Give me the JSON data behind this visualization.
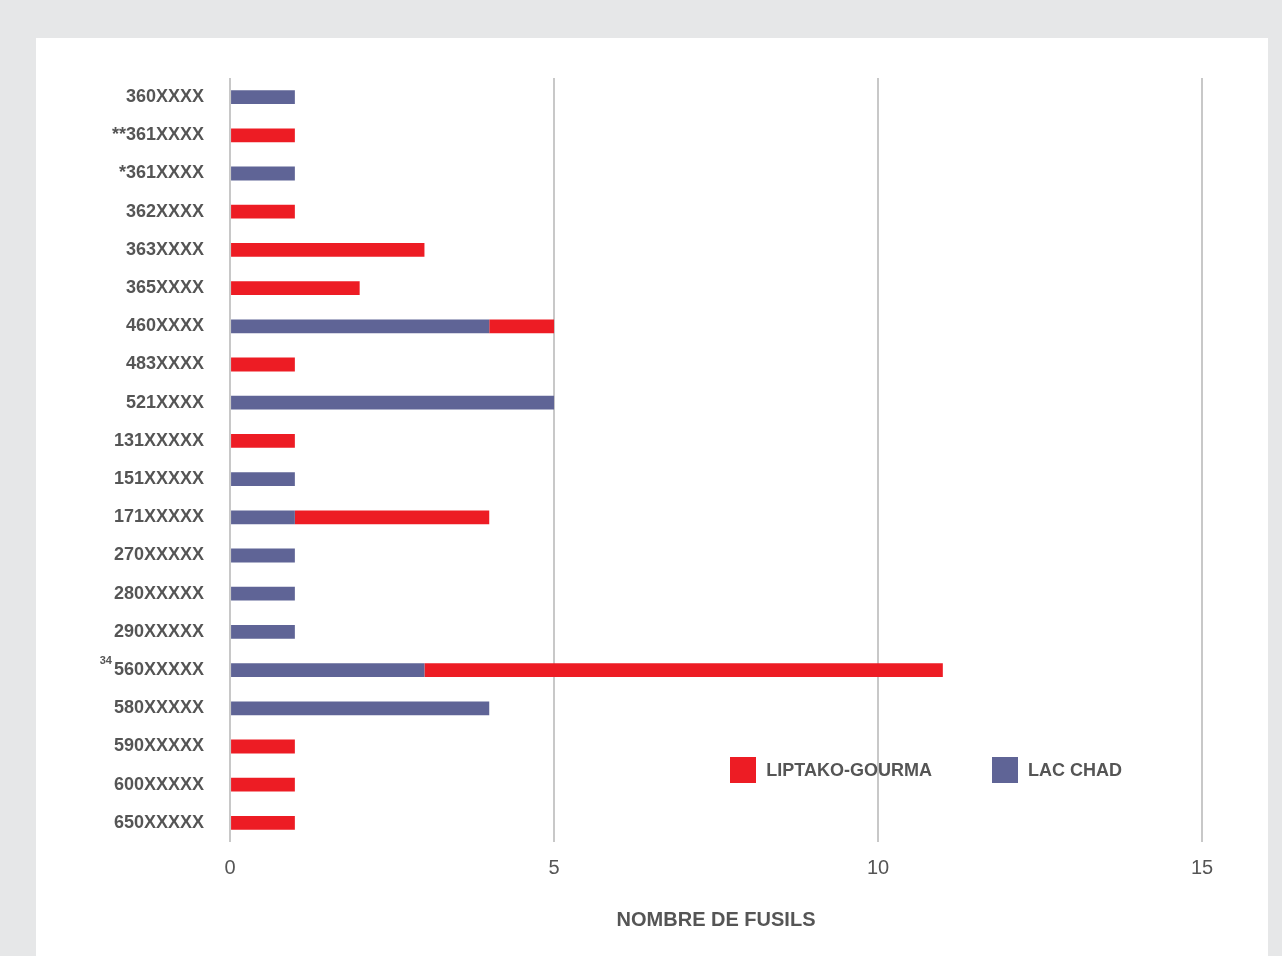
{
  "chart_data": {
    "type": "bar",
    "orientation": "horizontal",
    "stacked": true,
    "xlabel": "NOMBRE DE FUSILS",
    "categories": [
      "360XXXX",
      "**361XXXX",
      "*361XXXX",
      "362XXXX",
      "363XXXX",
      "365XXXX",
      "460XXXX",
      "483XXXX",
      "521XXXX",
      "131XXXXX",
      "151XXXXX",
      "171XXXXX",
      "270XXXXX",
      "280XXXXX",
      "290XXXXX",
      "560XXXXX",
      "580XXXXX",
      "590XXXXX",
      "600XXXXX",
      "650XXXXX"
    ],
    "series": [
      {
        "name": "LAC CHAD",
        "color": "#5f6496",
        "values": [
          1,
          null,
          1,
          null,
          null,
          null,
          4,
          null,
          5,
          null,
          1,
          1,
          1,
          1,
          1,
          3,
          4,
          null,
          null,
          null
        ]
      },
      {
        "name": "LIPTAKO-GOURMA",
        "color": "#ed1c24",
        "values": [
          null,
          1,
          null,
          1,
          3,
          2,
          1,
          1,
          null,
          1,
          null,
          3,
          null,
          null,
          null,
          8,
          null,
          1,
          1,
          1
        ]
      }
    ],
    "xlim": [
      0,
      15
    ],
    "xticks": [
      0,
      5,
      10,
      15
    ],
    "grid": "x",
    "legend": "bottom right",
    "annotations": [
      "34"
    ]
  }
}
